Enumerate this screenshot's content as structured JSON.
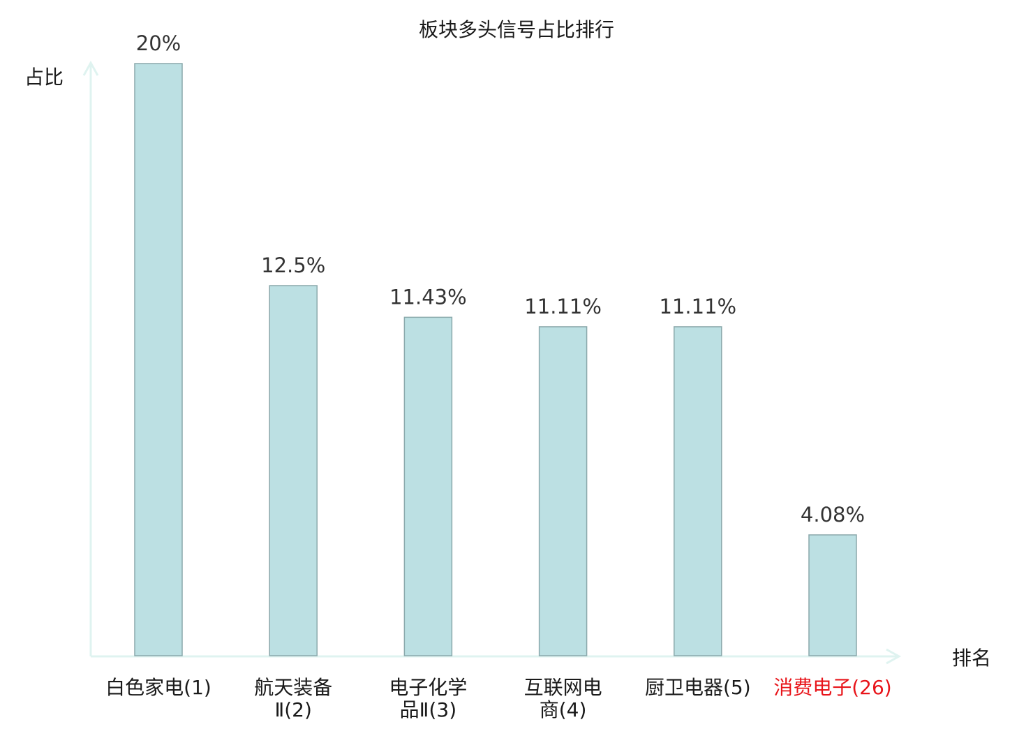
{
  "chart_data": {
    "type": "bar",
    "title": "板块多头信号占比排行",
    "xlabel": "排名",
    "ylabel": "占比",
    "categories": [
      {
        "lines": [
          "白色家电(1)"
        ],
        "highlight": false
      },
      {
        "lines": [
          "航天装备",
          "Ⅱ(2)"
        ],
        "highlight": false
      },
      {
        "lines": [
          "电子化学",
          "品Ⅱ(3)"
        ],
        "highlight": false
      },
      {
        "lines": [
          "互联网电",
          "商(4)"
        ],
        "highlight": false
      },
      {
        "lines": [
          "厨卫电器(5)"
        ],
        "highlight": false
      },
      {
        "lines": [
          "消费电子(26)"
        ],
        "highlight": true
      }
    ],
    "values": [
      20,
      12.5,
      11.43,
      11.11,
      11.11,
      4.08
    ],
    "value_labels": [
      "20%",
      "12.5%",
      "11.43%",
      "11.11%",
      "11.11%",
      "4.08%"
    ],
    "ylim": [
      0,
      20
    ],
    "grid": false,
    "colors": {
      "bar_fill": "#bce0e3",
      "bar_stroke": "#8aa8ab",
      "axis": "#dff3f0",
      "highlight": "#e8141a",
      "text": "#1a1a1a",
      "value_text": "#333333"
    }
  }
}
